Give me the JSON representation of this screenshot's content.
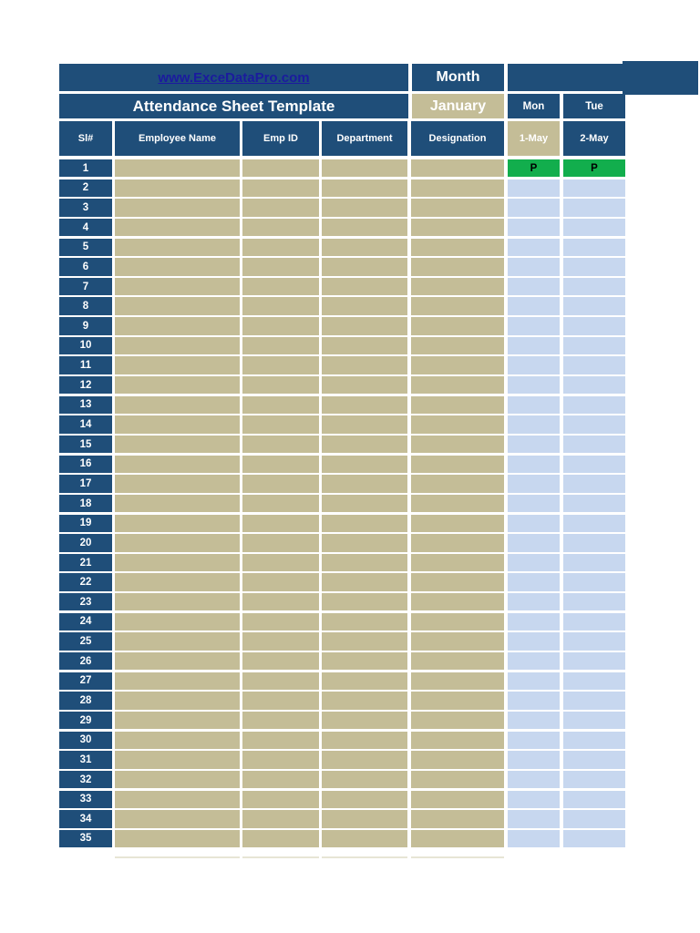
{
  "colors": {
    "dark_blue": "#1F4E79",
    "tan": "#C4BD97",
    "light_blue": "#C7D7EF",
    "green": "#12AE4D",
    "link_blue": "#1B1B9E"
  },
  "header": {
    "website_link": "www.ExceDataPro.com",
    "month_label": "Month",
    "title": "Attendance Sheet Template",
    "month_value": "January",
    "day_names": [
      "Mon",
      "Tue"
    ]
  },
  "table": {
    "columns": [
      "Sl#",
      "Employee Name",
      "Emp ID",
      "Department",
      "Designation"
    ],
    "date_columns": [
      "1-May",
      "2-May"
    ],
    "rows": [
      {
        "sl": "1",
        "employee_name": "",
        "emp_id": "",
        "department": "",
        "designation": "",
        "mon": "P",
        "tue": "P"
      },
      {
        "sl": "2",
        "employee_name": "",
        "emp_id": "",
        "department": "",
        "designation": "",
        "mon": "",
        "tue": ""
      },
      {
        "sl": "3",
        "employee_name": "",
        "emp_id": "",
        "department": "",
        "designation": "",
        "mon": "",
        "tue": ""
      },
      {
        "sl": "4",
        "employee_name": "",
        "emp_id": "",
        "department": "",
        "designation": "",
        "mon": "",
        "tue": ""
      },
      {
        "sl": "5",
        "employee_name": "",
        "emp_id": "",
        "department": "",
        "designation": "",
        "mon": "",
        "tue": ""
      },
      {
        "sl": "6",
        "employee_name": "",
        "emp_id": "",
        "department": "",
        "designation": "",
        "mon": "",
        "tue": ""
      },
      {
        "sl": "7",
        "employee_name": "",
        "emp_id": "",
        "department": "",
        "designation": "",
        "mon": "",
        "tue": ""
      },
      {
        "sl": "8",
        "employee_name": "",
        "emp_id": "",
        "department": "",
        "designation": "",
        "mon": "",
        "tue": ""
      },
      {
        "sl": "9",
        "employee_name": "",
        "emp_id": "",
        "department": "",
        "designation": "",
        "mon": "",
        "tue": ""
      },
      {
        "sl": "10",
        "employee_name": "",
        "emp_id": "",
        "department": "",
        "designation": "",
        "mon": "",
        "tue": ""
      },
      {
        "sl": "11",
        "employee_name": "",
        "emp_id": "",
        "department": "",
        "designation": "",
        "mon": "",
        "tue": ""
      },
      {
        "sl": "12",
        "employee_name": "",
        "emp_id": "",
        "department": "",
        "designation": "",
        "mon": "",
        "tue": ""
      },
      {
        "sl": "13",
        "employee_name": "",
        "emp_id": "",
        "department": "",
        "designation": "",
        "mon": "",
        "tue": ""
      },
      {
        "sl": "14",
        "employee_name": "",
        "emp_id": "",
        "department": "",
        "designation": "",
        "mon": "",
        "tue": ""
      },
      {
        "sl": "15",
        "employee_name": "",
        "emp_id": "",
        "department": "",
        "designation": "",
        "mon": "",
        "tue": ""
      },
      {
        "sl": "16",
        "employee_name": "",
        "emp_id": "",
        "department": "",
        "designation": "",
        "mon": "",
        "tue": ""
      },
      {
        "sl": "17",
        "employee_name": "",
        "emp_id": "",
        "department": "",
        "designation": "",
        "mon": "",
        "tue": ""
      },
      {
        "sl": "18",
        "employee_name": "",
        "emp_id": "",
        "department": "",
        "designation": "",
        "mon": "",
        "tue": ""
      },
      {
        "sl": "19",
        "employee_name": "",
        "emp_id": "",
        "department": "",
        "designation": "",
        "mon": "",
        "tue": ""
      },
      {
        "sl": "20",
        "employee_name": "",
        "emp_id": "",
        "department": "",
        "designation": "",
        "mon": "",
        "tue": ""
      },
      {
        "sl": "21",
        "employee_name": "",
        "emp_id": "",
        "department": "",
        "designation": "",
        "mon": "",
        "tue": ""
      },
      {
        "sl": "22",
        "employee_name": "",
        "emp_id": "",
        "department": "",
        "designation": "",
        "mon": "",
        "tue": ""
      },
      {
        "sl": "23",
        "employee_name": "",
        "emp_id": "",
        "department": "",
        "designation": "",
        "mon": "",
        "tue": ""
      },
      {
        "sl": "24",
        "employee_name": "",
        "emp_id": "",
        "department": "",
        "designation": "",
        "mon": "",
        "tue": ""
      },
      {
        "sl": "25",
        "employee_name": "",
        "emp_id": "",
        "department": "",
        "designation": "",
        "mon": "",
        "tue": ""
      },
      {
        "sl": "26",
        "employee_name": "",
        "emp_id": "",
        "department": "",
        "designation": "",
        "mon": "",
        "tue": ""
      },
      {
        "sl": "27",
        "employee_name": "",
        "emp_id": "",
        "department": "",
        "designation": "",
        "mon": "",
        "tue": ""
      },
      {
        "sl": "28",
        "employee_name": "",
        "emp_id": "",
        "department": "",
        "designation": "",
        "mon": "",
        "tue": ""
      },
      {
        "sl": "29",
        "employee_name": "",
        "emp_id": "",
        "department": "",
        "designation": "",
        "mon": "",
        "tue": ""
      },
      {
        "sl": "30",
        "employee_name": "",
        "emp_id": "",
        "department": "",
        "designation": "",
        "mon": "",
        "tue": ""
      },
      {
        "sl": "31",
        "employee_name": "",
        "emp_id": "",
        "department": "",
        "designation": "",
        "mon": "",
        "tue": ""
      },
      {
        "sl": "32",
        "employee_name": "",
        "emp_id": "",
        "department": "",
        "designation": "",
        "mon": "",
        "tue": ""
      },
      {
        "sl": "33",
        "employee_name": "",
        "emp_id": "",
        "department": "",
        "designation": "",
        "mon": "",
        "tue": ""
      },
      {
        "sl": "34",
        "employee_name": "",
        "emp_id": "",
        "department": "",
        "designation": "",
        "mon": "",
        "tue": ""
      },
      {
        "sl": "35",
        "employee_name": "",
        "emp_id": "",
        "department": "",
        "designation": "",
        "mon": "",
        "tue": ""
      }
    ]
  }
}
